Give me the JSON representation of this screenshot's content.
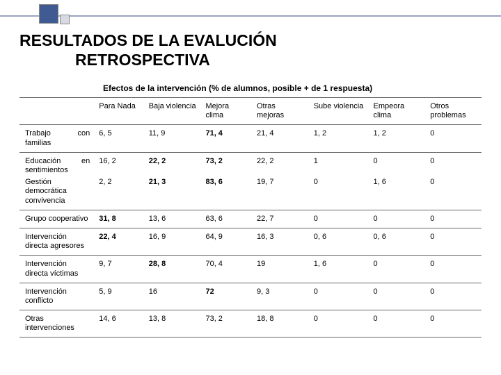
{
  "title_line1": "RESULTADOS DE LA EVALUCIÓN",
  "title_line2": "RETROSPECTIVA",
  "subheading": "Efectos de la intervención (% de alumnos, posible + de 1 respuesta)",
  "columns": [
    "Para Nada",
    "Baja violencia",
    "Mejora clima",
    "Otras mejoras",
    "Sube violencia",
    "Empeora clima",
    "Otros problemas"
  ],
  "rows": [
    {
      "label": "Trabajo con familias",
      "tag": "con",
      "base": "Trabajo familias",
      "values": [
        "6, 5",
        "11, 9",
        "71, 4",
        "21, 4",
        "1, 2",
        "1, 2",
        "0"
      ],
      "bold": [
        false,
        false,
        true,
        false,
        false,
        false,
        false
      ]
    },
    {
      "label": "Educación en sentimientos",
      "tag": "en",
      "base": "Educación sentimientos",
      "values": [
        "16, 2",
        "22, 2",
        "73, 2",
        "22, 2",
        "1",
        "0",
        "0"
      ],
      "bold": [
        false,
        true,
        true,
        false,
        false,
        false,
        false
      ],
      "merged": true
    },
    {
      "label": "Gestión democrática convivencia",
      "values": [
        "2, 2",
        "21, 3",
        "83, 6",
        "19, 7",
        "0",
        "1, 6",
        "0"
      ],
      "bold": [
        false,
        true,
        true,
        false,
        false,
        false,
        false
      ]
    },
    {
      "label": "Grupo cooperativo",
      "values": [
        "31, 8",
        "13, 6",
        "63, 6",
        "22, 7",
        "0",
        "0",
        "0"
      ],
      "bold": [
        true,
        false,
        false,
        false,
        false,
        false,
        false
      ]
    },
    {
      "label": "Intervención directa agresores",
      "values": [
        "22, 4",
        "16, 9",
        "64, 9",
        "16, 3",
        "0, 6",
        "0, 6",
        "0"
      ],
      "bold": [
        true,
        false,
        false,
        false,
        false,
        false,
        false
      ]
    },
    {
      "label": "Intervención directa víctimas",
      "values": [
        "9, 7",
        "28, 8",
        "70, 4",
        "19",
        "1, 6",
        "0",
        "0"
      ],
      "bold": [
        false,
        true,
        false,
        false,
        false,
        false,
        false
      ]
    },
    {
      "label": "Intervención conflicto",
      "values": [
        "5, 9",
        "16",
        "72",
        "9, 3",
        "0",
        "0",
        "0"
      ],
      "bold": [
        false,
        false,
        true,
        false,
        false,
        false,
        false
      ]
    },
    {
      "label": "Otras intervenciones",
      "values": [
        "14, 6",
        "13, 8",
        "73, 2",
        "18, 8",
        "0",
        "0",
        "0"
      ],
      "bold": [
        false,
        false,
        false,
        false,
        false,
        false,
        false
      ]
    }
  ],
  "colors": {
    "accent": "#3f5b91",
    "line": "#9aa6bf",
    "border": "#666666",
    "bg": "#ffffff",
    "text": "#000000"
  }
}
